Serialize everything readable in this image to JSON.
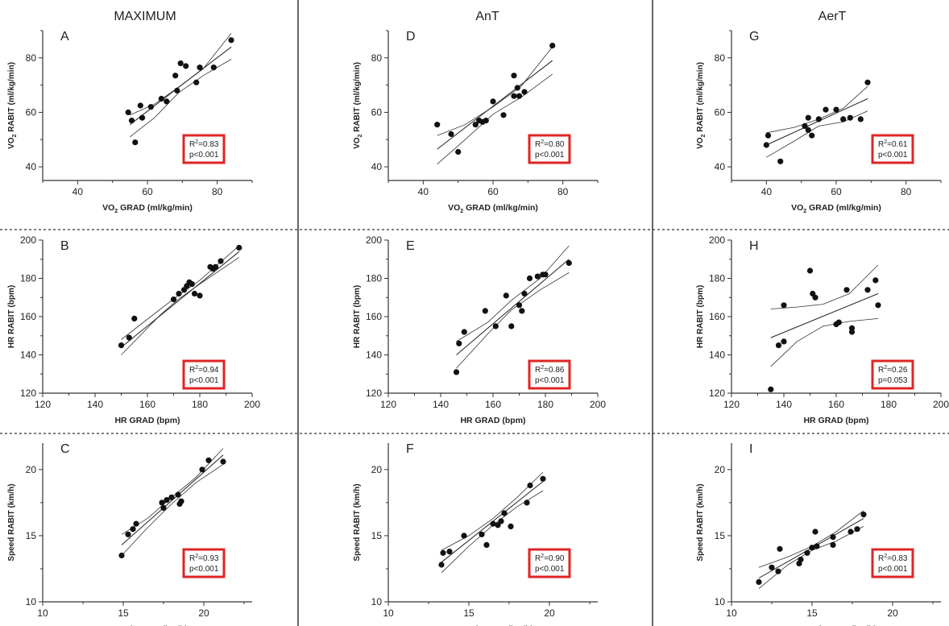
{
  "columns": [
    "MAXIMUM",
    "AnT",
    "AerT"
  ],
  "chart_data": [
    {
      "letter": "A",
      "type": "scatter",
      "xlabel_main": "VO",
      "xlabel_sub": "2",
      "xlabel_rest": " GRAD  (ml/kg/min)",
      "ylabel_main": "VO",
      "ylabel_sub": "2",
      "ylabel_rest": " RABIT (ml/kg/min)",
      "xlim": [
        30,
        90
      ],
      "ylim": [
        35,
        90
      ],
      "xticks": [
        40,
        60,
        80
      ],
      "yticks": [
        40,
        60,
        80
      ],
      "r2_label": "R",
      "r2_sup": "2",
      "r2_value": "=0.83",
      "p_text": "p<0.001",
      "points": [
        [
          54.5,
          60
        ],
        [
          55.5,
          57
        ],
        [
          56.5,
          49
        ],
        [
          58,
          62.5
        ],
        [
          58.5,
          58
        ],
        [
          61,
          62
        ],
        [
          64,
          65
        ],
        [
          65.5,
          64
        ],
        [
          68,
          73.5
        ],
        [
          68.5,
          68
        ],
        [
          69.5,
          78
        ],
        [
          71,
          77
        ],
        [
          74,
          71
        ],
        [
          75,
          76.5
        ],
        [
          79,
          76.5
        ],
        [
          84,
          86.5
        ]
      ],
      "fit": [
        [
          55,
          55.5
        ],
        [
          84,
          84
        ]
      ],
      "ci_upper": [
        [
          55,
          59
        ],
        [
          62,
          63
        ],
        [
          69,
          69.3
        ],
        [
          76,
          76
        ],
        [
          84,
          89
        ]
      ],
      "ci_lower": [
        [
          55,
          51
        ],
        [
          62,
          58
        ],
        [
          69,
          67.3
        ],
        [
          76,
          73.5
        ],
        [
          84,
          79.5
        ]
      ]
    },
    {
      "letter": "B",
      "type": "scatter",
      "xlabel_main": "HR GRAD  (bpm)",
      "ylabel_main": "HR RABIT  (bpm)",
      "xlim": [
        120,
        200
      ],
      "ylim": [
        120,
        200
      ],
      "xticks": [
        120,
        140,
        160,
        180,
        200
      ],
      "yticks": [
        120,
        140,
        160,
        180,
        200
      ],
      "r2_label": "R",
      "r2_sup": "2",
      "r2_value": "=0.94",
      "p_text": "p<0.001",
      "points": [
        [
          150,
          145
        ],
        [
          153,
          149
        ],
        [
          155,
          159
        ],
        [
          170,
          169
        ],
        [
          172,
          172
        ],
        [
          174,
          174
        ],
        [
          175,
          176
        ],
        [
          176,
          178
        ],
        [
          177,
          177
        ],
        [
          178,
          172
        ],
        [
          180,
          171
        ],
        [
          184,
          186
        ],
        [
          185,
          185
        ],
        [
          186,
          186
        ],
        [
          188,
          189
        ],
        [
          195,
          196
        ]
      ],
      "fit": [
        [
          150,
          144
        ],
        [
          195,
          194
        ]
      ],
      "ci_upper": [
        [
          150,
          148
        ],
        [
          165,
          164
        ],
        [
          172,
          171.3
        ],
        [
          180,
          179
        ],
        [
          195,
          197
        ]
      ],
      "ci_lower": [
        [
          150,
          140
        ],
        [
          165,
          161
        ],
        [
          172,
          169.3
        ],
        [
          180,
          177
        ],
        [
          195,
          191
        ]
      ]
    },
    {
      "letter": "C",
      "type": "scatter",
      "xlabel_main": "Speed GRAD  (km/h)",
      "ylabel_main": "Speed RABIT (km/h)",
      "xlim": [
        10,
        23
      ],
      "ylim": [
        10,
        22
      ],
      "xticks": [
        10,
        15,
        20
      ],
      "yticks": [
        10,
        15,
        20
      ],
      "r2_label": "R",
      "r2_sup": "2",
      "r2_value": "=0.93",
      "p_text": "p<0.001",
      "points": [
        [
          14.9,
          13.5
        ],
        [
          15.3,
          15.1
        ],
        [
          15.6,
          15.5
        ],
        [
          15.8,
          15.9
        ],
        [
          17.4,
          17.5
        ],
        [
          17.5,
          17.1
        ],
        [
          17.7,
          17.7
        ],
        [
          18,
          17.9
        ],
        [
          18.4,
          18.1
        ],
        [
          18.5,
          17.4
        ],
        [
          18.6,
          17.6
        ],
        [
          19.9,
          20
        ],
        [
          20.3,
          20.7
        ],
        [
          21.2,
          20.6
        ]
      ],
      "fit": [
        [
          14.9,
          14.3
        ],
        [
          21.2,
          21.1
        ]
      ],
      "ci_upper": [
        [
          14.9,
          15.1
        ],
        [
          16.5,
          16.3
        ],
        [
          18,
          17.9
        ],
        [
          19.5,
          19.4
        ],
        [
          21.2,
          21.6
        ]
      ],
      "ci_lower": [
        [
          14.9,
          13.5
        ],
        [
          16.5,
          15.6
        ],
        [
          18,
          17.4
        ],
        [
          19.5,
          19.0
        ],
        [
          21.2,
          20.4
        ]
      ]
    },
    {
      "letter": "D",
      "type": "scatter",
      "xlabel_main": "VO",
      "xlabel_sub": "2",
      "xlabel_rest": " GRAD  (ml/kg/min)",
      "ylabel_main": "VO",
      "ylabel_sub": "2",
      "ylabel_rest": " RABIT (ml/kg/min)",
      "xlim": [
        30,
        90
      ],
      "ylim": [
        35,
        90
      ],
      "xticks": [
        40,
        60,
        80
      ],
      "yticks": [
        40,
        60,
        80
      ],
      "r2_label": "R",
      "r2_sup": "2",
      "r2_value": "=0.80",
      "p_text": "p<0.001",
      "points": [
        [
          44,
          55.5
        ],
        [
          48,
          52
        ],
        [
          50,
          45.5
        ],
        [
          55,
          55.5
        ],
        [
          56,
          57
        ],
        [
          57,
          56.5
        ],
        [
          58,
          57
        ],
        [
          60,
          64
        ],
        [
          63,
          59
        ],
        [
          66,
          73.5
        ],
        [
          66,
          66
        ],
        [
          67,
          69
        ],
        [
          67.5,
          66
        ],
        [
          69,
          67.5
        ],
        [
          77,
          84.5
        ]
      ],
      "fit": [
        [
          44,
          46.5
        ],
        [
          77,
          79
        ]
      ],
      "ci_upper": [
        [
          44,
          51.5
        ],
        [
          52,
          55.5
        ],
        [
          60,
          62
        ],
        [
          68,
          69.5
        ],
        [
          77,
          84
        ]
      ],
      "ci_lower": [
        [
          44,
          41
        ],
        [
          52,
          50
        ],
        [
          60,
          59.3
        ],
        [
          68,
          65.5
        ],
        [
          77,
          74
        ]
      ]
    },
    {
      "letter": "E",
      "type": "scatter",
      "xlabel_main": "HR GRAD  (bpm)",
      "ylabel_main": "HR RABIT  (bpm)",
      "xlim": [
        120,
        200
      ],
      "ylim": [
        120,
        200
      ],
      "xticks": [
        120,
        140,
        160,
        180,
        200
      ],
      "yticks": [
        120,
        140,
        160,
        180,
        200
      ],
      "r2_label": "R",
      "r2_sup": "2",
      "r2_value": "=0.86",
      "p_text": "p<0.001",
      "points": [
        [
          146,
          131
        ],
        [
          147,
          146
        ],
        [
          149,
          152
        ],
        [
          157,
          163
        ],
        [
          161,
          155
        ],
        [
          165,
          171
        ],
        [
          167,
          155
        ],
        [
          170,
          166
        ],
        [
          171,
          163
        ],
        [
          172,
          172
        ],
        [
          174,
          180
        ],
        [
          177,
          181
        ],
        [
          179,
          182
        ],
        [
          180,
          182
        ],
        [
          189,
          188
        ]
      ],
      "fit": [
        [
          146,
          140
        ],
        [
          189,
          190
        ]
      ],
      "ci_upper": [
        [
          146,
          147
        ],
        [
          158,
          157
        ],
        [
          167,
          168.5
        ],
        [
          178,
          180
        ],
        [
          189,
          197
        ]
      ],
      "ci_lower": [
        [
          146,
          133
        ],
        [
          158,
          151
        ],
        [
          167,
          163.5
        ],
        [
          178,
          174
        ],
        [
          189,
          183
        ]
      ]
    },
    {
      "letter": "F",
      "type": "scatter",
      "xlabel_main": "Speed GRAD  (km/h)",
      "ylabel_main": "Speed RABIT (km/h)",
      "xlim": [
        10,
        23
      ],
      "ylim": [
        10,
        22
      ],
      "xticks": [
        10,
        15,
        20
      ],
      "yticks": [
        10,
        15,
        20
      ],
      "r2_label": "R",
      "r2_sup": "2",
      "r2_value": "=0.90",
      "p_text": "p<0.001",
      "points": [
        [
          13.3,
          12.8
        ],
        [
          13.4,
          13.7
        ],
        [
          13.8,
          13.8
        ],
        [
          14.7,
          15
        ],
        [
          15.8,
          15.1
        ],
        [
          16.1,
          14.3
        ],
        [
          16.5,
          15.9
        ],
        [
          16.8,
          15.8
        ],
        [
          17,
          16.1
        ],
        [
          17.2,
          16.7
        ],
        [
          17.6,
          15.7
        ],
        [
          18.6,
          17.5
        ],
        [
          18.8,
          18.8
        ],
        [
          19.6,
          19.3
        ]
      ],
      "fit": [
        [
          13.3,
          13.0
        ],
        [
          19.6,
          19.1
        ]
      ],
      "ci_upper": [
        [
          13.3,
          13.9
        ],
        [
          15,
          15.0
        ],
        [
          16.5,
          16.3
        ],
        [
          18,
          17.9
        ],
        [
          19.6,
          19.8
        ]
      ],
      "ci_lower": [
        [
          13.3,
          12.2
        ],
        [
          15,
          14.2
        ],
        [
          16.5,
          15.8
        ],
        [
          18,
          17.2
        ],
        [
          19.6,
          18.4
        ]
      ]
    },
    {
      "letter": "G",
      "type": "scatter",
      "xlabel_main": "VO",
      "xlabel_sub": "2",
      "xlabel_rest": " GRAD  (ml/kg/min)",
      "ylabel_main": "VO",
      "ylabel_sub": "2",
      "ylabel_rest": " RABIT (ml/kg/min)",
      "xlim": [
        30,
        90
      ],
      "ylim": [
        35,
        90
      ],
      "xticks": [
        40,
        60,
        80
      ],
      "yticks": [
        40,
        60,
        80
      ],
      "r2_label": "R",
      "r2_sup": "2",
      "r2_value": "=0.61",
      "p_text": "p<0.001",
      "points": [
        [
          40,
          48
        ],
        [
          40.5,
          51.5
        ],
        [
          44,
          42
        ],
        [
          51,
          55
        ],
        [
          52,
          53.5
        ],
        [
          52,
          58
        ],
        [
          53,
          51.5
        ],
        [
          55,
          57.5
        ],
        [
          57,
          61
        ],
        [
          60,
          61
        ],
        [
          62,
          57.5
        ],
        [
          64,
          58
        ],
        [
          67,
          57.5
        ],
        [
          69,
          71
        ]
      ],
      "fit": [
        [
          40,
          48
        ],
        [
          69,
          65
        ]
      ],
      "ci_upper": [
        [
          40,
          52.5
        ],
        [
          48,
          54.5
        ],
        [
          55,
          57.5
        ],
        [
          62,
          61.5
        ],
        [
          69,
          69.5
        ]
      ],
      "ci_lower": [
        [
          40,
          43.5
        ],
        [
          48,
          49.5
        ],
        [
          55,
          55
        ],
        [
          62,
          56.5
        ],
        [
          69,
          60.5
        ]
      ]
    },
    {
      "letter": "H",
      "type": "scatter",
      "xlabel_main": "HR GRAD  (bpm)",
      "ylabel_main": "HR RABIT  (bpm)",
      "xlim": [
        120,
        200
      ],
      "ylim": [
        120,
        200
      ],
      "xticks": [
        120,
        140,
        160,
        180,
        200
      ],
      "yticks": [
        120,
        140,
        160,
        180,
        200
      ],
      "r2_label": "R",
      "r2_sup": "2",
      "r2_value": "=0.26",
      "p_text": "p=0.053",
      "points": [
        [
          135,
          122
        ],
        [
          138,
          145
        ],
        [
          140,
          147
        ],
        [
          140,
          166
        ],
        [
          150,
          184
        ],
        [
          151,
          172
        ],
        [
          152,
          170
        ],
        [
          160,
          156
        ],
        [
          161,
          157
        ],
        [
          164,
          174
        ],
        [
          166,
          154
        ],
        [
          166,
          152
        ],
        [
          172,
          174
        ],
        [
          175,
          179
        ],
        [
          176,
          166
        ]
      ],
      "fit": [
        [
          135,
          149
        ],
        [
          176,
          172
        ]
      ],
      "ci_upper": [
        [
          135,
          164
        ],
        [
          145,
          165
        ],
        [
          155,
          166.5
        ],
        [
          165,
          172
        ],
        [
          176,
          187
        ]
      ],
      "ci_lower": [
        [
          135,
          134
        ],
        [
          145,
          147
        ],
        [
          155,
          155
        ],
        [
          165,
          157.5
        ],
        [
          176,
          159
        ]
      ]
    },
    {
      "letter": "I",
      "type": "scatter",
      "xlabel_main": "Speed GRAD  (km/h)",
      "ylabel_main": "Speed RABIT (km/h)",
      "xlim": [
        10,
        23
      ],
      "ylim": [
        10,
        22
      ],
      "xticks": [
        10,
        15,
        20
      ],
      "yticks": [
        10,
        15,
        20
      ],
      "r2_label": "R",
      "r2_sup": "2",
      "r2_value": "=0.83",
      "p_text": "p<0.001",
      "points": [
        [
          11.7,
          11.5
        ],
        [
          12.5,
          12.6
        ],
        [
          12.9,
          12.3
        ],
        [
          13,
          14
        ],
        [
          14.2,
          12.9
        ],
        [
          14.3,
          13.2
        ],
        [
          14.7,
          13.7
        ],
        [
          15,
          14.1
        ],
        [
          15.2,
          15.3
        ],
        [
          15.3,
          14.2
        ],
        [
          16.3,
          14.3
        ],
        [
          16.3,
          14.9
        ],
        [
          17.4,
          15.3
        ],
        [
          17.8,
          15.5
        ],
        [
          18.2,
          16.6
        ]
      ],
      "fit": [
        [
          11.7,
          11.8
        ],
        [
          18.2,
          16.3
        ]
      ],
      "ci_upper": [
        [
          11.7,
          12.6
        ],
        [
          13.5,
          13.4
        ],
        [
          15,
          14.2
        ],
        [
          16.5,
          15.3
        ],
        [
          18.2,
          16.9
        ]
      ],
      "ci_lower": [
        [
          11.7,
          11.0
        ],
        [
          13.5,
          12.8
        ],
        [
          15,
          13.9
        ],
        [
          16.5,
          14.6
        ],
        [
          18.2,
          15.7
        ]
      ]
    }
  ]
}
